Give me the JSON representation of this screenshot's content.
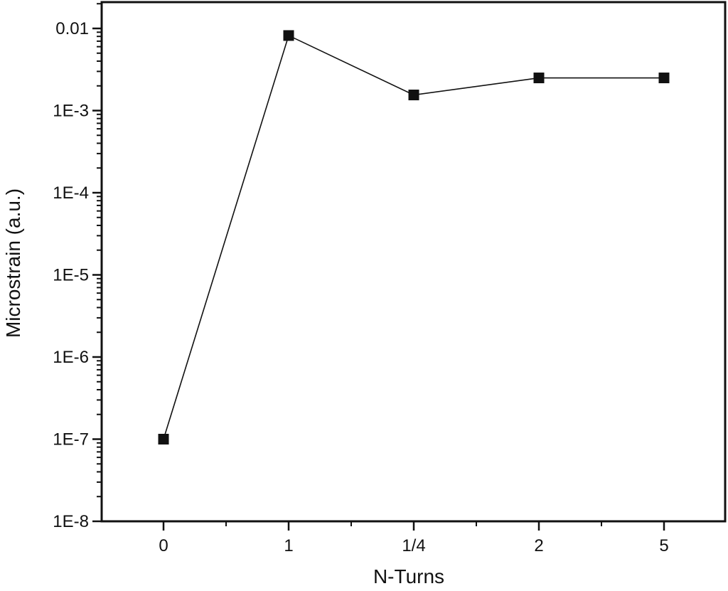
{
  "chart_data": {
    "type": "line",
    "title": "",
    "xlabel": "N-Turns",
    "ylabel": "Microstrain (a.u.)",
    "y_scale": "log",
    "ylim": [
      1e-08,
      0.02
    ],
    "y_ticks": [
      {
        "value": 1e-08,
        "label": "1E-8"
      },
      {
        "value": 1e-07,
        "label": "1E-7"
      },
      {
        "value": 1e-06,
        "label": "1E-6"
      },
      {
        "value": 1e-05,
        "label": "1E-5"
      },
      {
        "value": 0.0001,
        "label": "1E-4"
      },
      {
        "value": 0.001,
        "label": "1E-3"
      },
      {
        "value": 0.01,
        "label": "0.01"
      }
    ],
    "categories": [
      "0",
      "1",
      "1/4",
      "2",
      "5"
    ],
    "series": [
      {
        "values": [
          1e-07,
          0.0082,
          0.00155,
          0.0025,
          0.0025
        ],
        "marker": "square",
        "color": "#111111"
      }
    ],
    "grid": false,
    "legend": "none"
  }
}
